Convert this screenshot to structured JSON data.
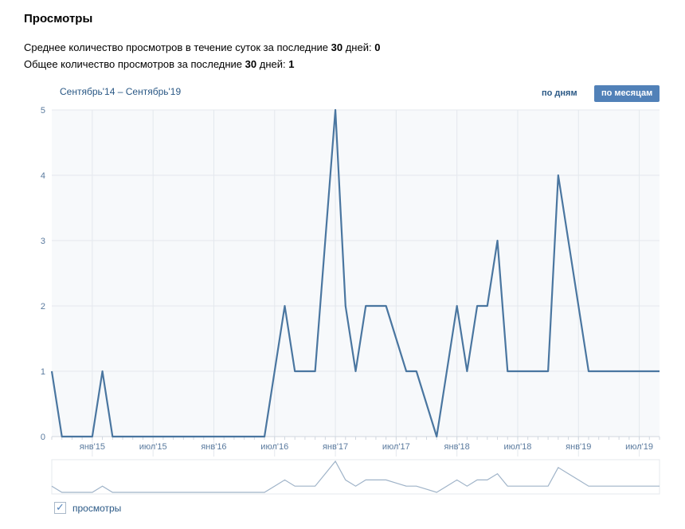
{
  "header": {
    "title": "Просмотры"
  },
  "stats": [
    {
      "label": "Среднее количество просмотров в течение суток за последние ",
      "bold_num": "30",
      "mid": " дней: ",
      "value": "0"
    },
    {
      "label": "Общее количество просмотров за последние ",
      "bold_num": "30",
      "mid": " дней: ",
      "value": "1"
    }
  ],
  "range": "Сентябрь'14 – Сентябрь'19",
  "buttons": {
    "by_days": "по дням",
    "by_months": "по месяцам"
  },
  "legend": {
    "label": "просмотры",
    "checked": true
  },
  "colors": {
    "line": "#4a76a0",
    "accent": "#5181b8"
  },
  "chart_data": {
    "type": "line",
    "title": "",
    "ylim": [
      0,
      5
    ],
    "yticks": [
      "0",
      "1",
      "2",
      "3",
      "4",
      "5"
    ],
    "xticks": [
      {
        "label": "янв'15",
        "index": 4
      },
      {
        "label": "июл'15",
        "index": 10
      },
      {
        "label": "янв'16",
        "index": 16
      },
      {
        "label": "июл'16",
        "index": 22
      },
      {
        "label": "янв'17",
        "index": 28
      },
      {
        "label": "июл'17",
        "index": 34
      },
      {
        "label": "янв'18",
        "index": 40
      },
      {
        "label": "июл'18",
        "index": 46
      },
      {
        "label": "янв'19",
        "index": 52
      },
      {
        "label": "июл'19",
        "index": 58
      }
    ],
    "series": [
      {
        "name": "просмотры",
        "values": [
          1,
          0,
          0,
          0,
          0,
          1,
          0,
          0,
          0,
          0,
          0,
          0,
          0,
          0,
          0,
          0,
          0,
          0,
          0,
          0,
          0,
          0,
          1,
          2,
          1,
          1,
          1,
          3,
          5,
          2,
          1,
          2,
          2,
          2,
          1.5,
          1,
          1,
          0.5,
          0,
          1,
          2,
          1,
          2,
          2,
          3,
          1,
          1,
          1,
          1,
          1,
          4,
          3,
          2,
          1,
          1,
          1,
          1,
          1,
          1,
          1,
          1
        ]
      }
    ]
  }
}
